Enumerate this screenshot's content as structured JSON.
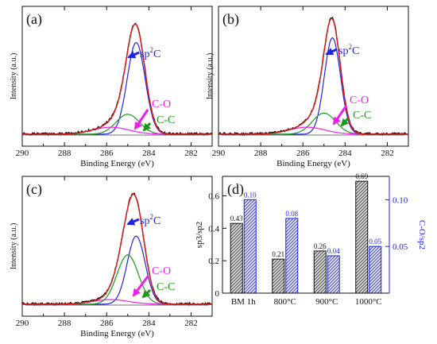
{
  "colors": {
    "black": "#111111",
    "red": "#e11b1b",
    "blue": "#1f24e0",
    "green": "#1a9a1a",
    "magenta": "#ee1fee",
    "bar_fill": "#d9d9d9"
  },
  "chart_data": [
    {
      "type": "line",
      "label": "(a)",
      "xlabel": "Binding Energy (eV)",
      "ylabel": "Intensity (a.u.)",
      "xlim": [
        281,
        290
      ],
      "x_reversed": true,
      "xticks": [
        290,
        288,
        286,
        284,
        282
      ],
      "tick_labels": [
        "290",
        "288",
        "286",
        "284",
        "282"
      ],
      "peaks": [
        {
          "name": "sp2C",
          "label_pre": "sp",
          "label_sup": "2",
          "label_post": "C",
          "center": 284.6,
          "amplitude": 0.78,
          "fwhm": 1.0,
          "color": "blue"
        },
        {
          "name": "C-C",
          "label": "C-C",
          "center": 285.0,
          "amplitude": 0.17,
          "fwhm": 1.3,
          "color": "green"
        },
        {
          "name": "C-O",
          "label": "C-O",
          "center": 285.8,
          "amplitude": 0.06,
          "fwhm": 2.0,
          "color": "magenta"
        }
      ]
    },
    {
      "type": "line",
      "label": "(b)",
      "xlabel": "Binding Energy (eV)",
      "ylabel": "Intensity (a.u.)",
      "xlim": [
        281,
        290
      ],
      "x_reversed": true,
      "xticks": [
        290,
        288,
        286,
        284,
        282
      ],
      "tick_labels": [
        "290",
        "288",
        "286",
        "284",
        "282"
      ],
      "peaks": [
        {
          "name": "sp2C",
          "label_pre": "sp",
          "label_sup": "2",
          "label_post": "C",
          "center": 284.6,
          "amplitude": 0.82,
          "fwhm": 0.9,
          "color": "blue"
        },
        {
          "name": "C-C",
          "label": "C-C",
          "center": 285.0,
          "amplitude": 0.18,
          "fwhm": 1.3,
          "color": "green"
        },
        {
          "name": "C-O",
          "label": "C-O",
          "center": 285.8,
          "amplitude": 0.06,
          "fwhm": 2.0,
          "color": "magenta"
        }
      ]
    },
    {
      "type": "line",
      "label": "(c)",
      "xlabel": "Binding Energy (eV)",
      "ylabel": "Intensity (a.u.)",
      "xlim": [
        281,
        290
      ],
      "x_reversed": true,
      "xticks": [
        290,
        288,
        286,
        284,
        282
      ],
      "tick_labels": [
        "290",
        "288",
        "286",
        "284",
        "282"
      ],
      "peaks": [
        {
          "name": "sp2C",
          "label_pre": "sp",
          "label_sup": "2",
          "label_post": "C",
          "center": 284.6,
          "amplitude": 0.58,
          "fwhm": 1.0,
          "color": "blue"
        },
        {
          "name": "C-C",
          "label": "C-C",
          "center": 285.0,
          "amplitude": 0.42,
          "fwhm": 1.2,
          "color": "green"
        },
        {
          "name": "C-O",
          "label": "C-O",
          "center": 285.8,
          "amplitude": 0.04,
          "fwhm": 2.0,
          "color": "magenta"
        }
      ]
    },
    {
      "type": "bar",
      "label": "(d)",
      "categories": [
        "BM 1h",
        "800°C",
        "900°C",
        "1000°C"
      ],
      "ylabel": "sp3/sp2",
      "y2label": "C-O/sp2",
      "ylim": [
        0,
        0.72
      ],
      "y2lim": [
        0,
        0.125
      ],
      "yticks": [
        0,
        0.2,
        0.4,
        0.6
      ],
      "ytick_labels": [
        "0",
        "0.2",
        "0.4",
        "0.6"
      ],
      "y2ticks": [
        0.05,
        0.1
      ],
      "y2tick_labels": [
        "0.05",
        "0.10"
      ],
      "series": [
        {
          "name": "sp3/sp2",
          "axis": "left",
          "values": [
            0.43,
            0.21,
            0.26,
            0.69
          ],
          "labels": [
            "0.43",
            "0.21",
            "0.26",
            "0.69"
          ],
          "color": "black"
        },
        {
          "name": "C-O/sp2",
          "axis": "right",
          "values": [
            0.1,
            0.08,
            0.04,
            0.05
          ],
          "labels": [
            "0.10",
            "0.08",
            "0.04",
            "0.05"
          ],
          "color": "blue"
        }
      ]
    }
  ]
}
